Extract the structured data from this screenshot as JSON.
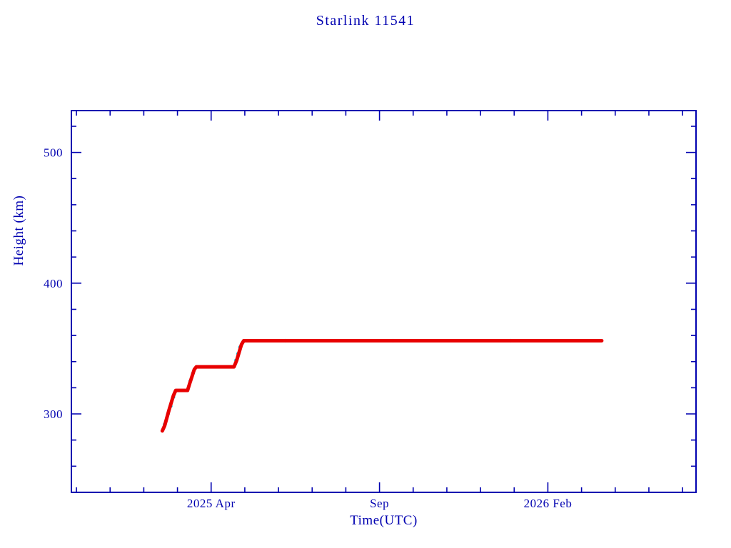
{
  "page": {
    "background": "#ffffff"
  },
  "chart_data": {
    "type": "scatter",
    "title": "Starlink 11541",
    "xlabel": "Time(UTC)",
    "ylabel": "Height (km)",
    "axis_color": "#0000b0",
    "background": "#ffffff",
    "grid": false,
    "legend": "none",
    "x_unit": "months since 2025-01-01",
    "xlim": [
      -1.15,
      17.4
    ],
    "ylim": [
      240,
      532
    ],
    "xticks_major": [
      {
        "value": 3,
        "label": "2025 Apr"
      },
      {
        "value": 8,
        "label": "Sep"
      },
      {
        "value": 13,
        "label": "2026 Feb"
      }
    ],
    "x_minor_step": 1,
    "yticks_major": [
      {
        "value": 300,
        "label": "300"
      },
      {
        "value": 400,
        "label": "400"
      },
      {
        "value": 500,
        "label": "500"
      }
    ],
    "y_minor_step": 20,
    "series": [
      {
        "name": "cyan-points",
        "color": "#00c8e6",
        "marker": "dot",
        "points": [
          [
            1.62,
            292
          ],
          [
            1.72,
            300
          ],
          [
            1.8,
            306
          ],
          [
            1.88,
            313
          ],
          [
            2.38,
            325
          ],
          [
            2.46,
            331
          ],
          [
            3.74,
            341
          ],
          [
            3.8,
            346
          ],
          [
            3.86,
            351
          ],
          [
            5.2,
            356
          ],
          [
            8.4,
            356
          ],
          [
            11.9,
            356
          ]
        ]
      },
      {
        "name": "red-line",
        "color": "#e80000",
        "marker": "thick-line",
        "points": [
          [
            1.55,
            287
          ],
          [
            1.62,
            291
          ],
          [
            1.75,
            303
          ],
          [
            1.88,
            314
          ],
          [
            1.95,
            318
          ],
          [
            2.3,
            318
          ],
          [
            2.36,
            323
          ],
          [
            2.5,
            334
          ],
          [
            2.56,
            336
          ],
          [
            3.68,
            336
          ],
          [
            3.76,
            341
          ],
          [
            3.9,
            353
          ],
          [
            3.97,
            356
          ],
          [
            14.6,
            356
          ]
        ]
      }
    ]
  }
}
